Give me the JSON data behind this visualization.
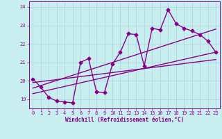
{
  "xlabel": "Windchill (Refroidissement éolien,°C)",
  "xlim": [
    -0.5,
    23.5
  ],
  "ylim": [
    18.5,
    24.3
  ],
  "yticks": [
    19,
    20,
    21,
    22,
    23,
    24
  ],
  "xticks": [
    0,
    1,
    2,
    3,
    4,
    5,
    6,
    7,
    8,
    9,
    10,
    11,
    12,
    13,
    14,
    15,
    16,
    17,
    18,
    19,
    20,
    21,
    22,
    23
  ],
  "bg_color": "#c8eef0",
  "grid_color": "#b0d8dc",
  "line_color": "#880088",
  "marker": "D",
  "marker_size": 2.5,
  "line_width": 1.0,
  "series": [
    {
      "x": [
        0,
        1,
        2,
        3,
        4,
        5,
        6,
        7,
        8,
        9,
        10,
        11,
        12,
        13,
        14,
        15,
        16,
        17,
        18,
        19,
        20,
        21,
        22,
        23
      ],
      "y": [
        20.1,
        19.65,
        19.1,
        18.9,
        18.85,
        18.8,
        21.0,
        21.2,
        19.4,
        19.35,
        20.9,
        21.55,
        22.55,
        22.5,
        20.8,
        22.85,
        22.75,
        23.85,
        23.1,
        22.85,
        22.7,
        22.5,
        22.15,
        21.55
      ],
      "has_markers": true
    },
    {
      "x": [
        0,
        23
      ],
      "y": [
        19.3,
        21.55
      ],
      "has_markers": false
    },
    {
      "x": [
        0,
        23
      ],
      "y": [
        19.6,
        22.8
      ],
      "has_markers": false
    },
    {
      "x": [
        0,
        23
      ],
      "y": [
        19.9,
        21.15
      ],
      "has_markers": false
    }
  ]
}
